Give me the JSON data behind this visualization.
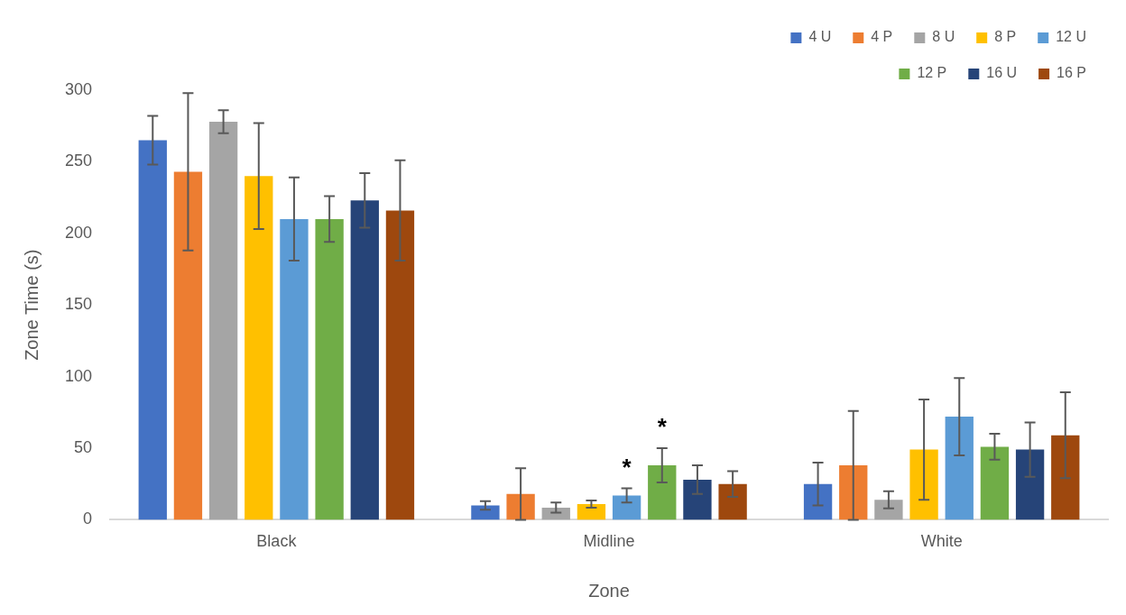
{
  "chart_data": {
    "type": "bar",
    "xlabel": "Zone",
    "ylabel": "Zone Time (s)",
    "categories": [
      "Black",
      "Midline",
      "White"
    ],
    "ylim": [
      0,
      300
    ],
    "yticks": [
      0,
      50,
      100,
      150,
      200,
      250,
      300
    ],
    "grid": false,
    "legend": "top right",
    "series": [
      {
        "name": "4 U",
        "color": "#4472c4",
        "values": [
          265,
          10,
          25
        ],
        "errors": [
          17,
          3,
          15
        ]
      },
      {
        "name": "4 P",
        "color": "#ed7d31",
        "values": [
          243,
          18,
          38
        ],
        "errors": [
          55,
          18,
          38
        ]
      },
      {
        "name": "8 U",
        "color": "#a5a5a5",
        "values": [
          278,
          8.5,
          14
        ],
        "errors": [
          8,
          3.5,
          6
        ]
      },
      {
        "name": "8 P",
        "color": "#ffc000",
        "values": [
          240,
          11,
          49
        ],
        "errors": [
          37,
          2.5,
          35
        ]
      },
      {
        "name": "12 U",
        "color": "#5b9bd5",
        "values": [
          210,
          17,
          72
        ],
        "errors": [
          29,
          5,
          27
        ]
      },
      {
        "name": "12 P",
        "color": "#70ad47",
        "values": [
          210,
          38,
          51
        ],
        "errors": [
          16,
          12,
          9
        ]
      },
      {
        "name": "16 U",
        "color": "#264478",
        "values": [
          223,
          28,
          49
        ],
        "errors": [
          19,
          10,
          19
        ]
      },
      {
        "name": "16 P",
        "color": "#9e480e",
        "values": [
          216,
          25,
          59
        ],
        "errors": [
          35,
          9,
          30
        ]
      }
    ],
    "annotations": [
      "*",
      "*"
    ]
  }
}
